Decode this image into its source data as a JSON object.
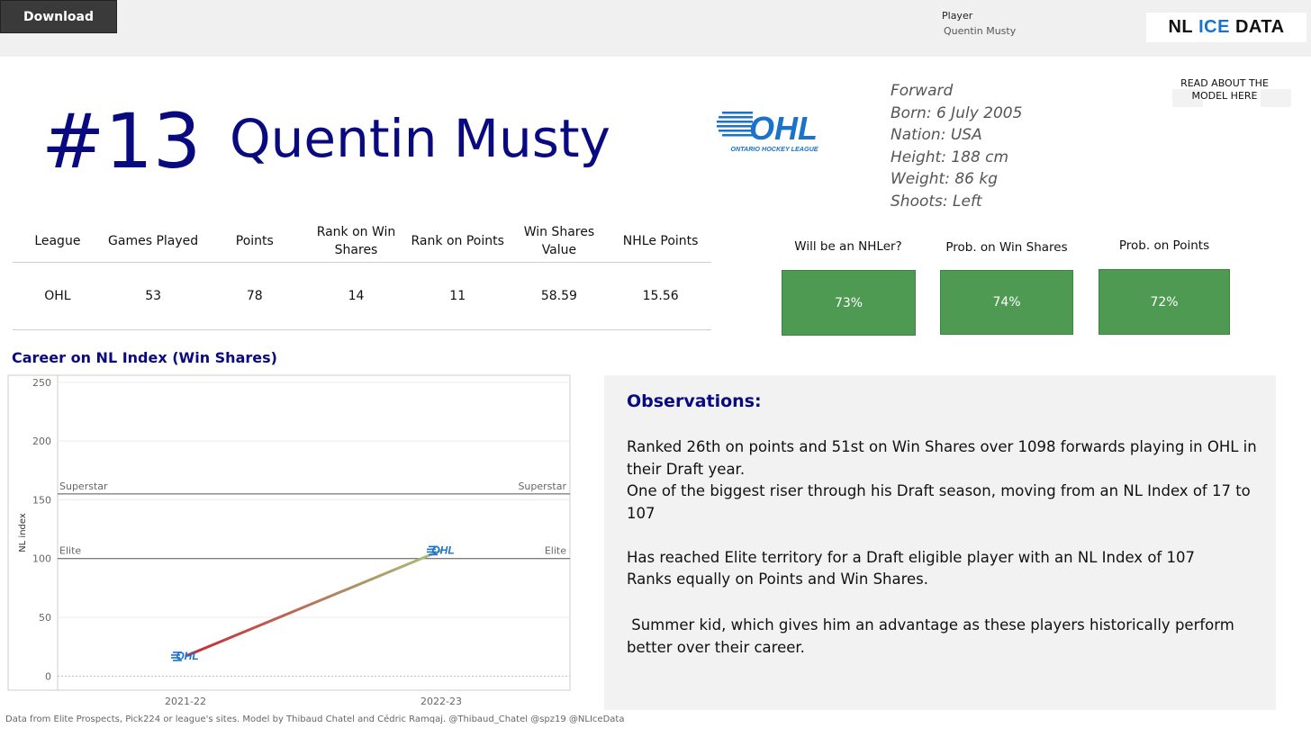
{
  "toolbar": {
    "download_label": "Download"
  },
  "filter": {
    "label": "Player",
    "value": "Quentin Musty"
  },
  "brand": {
    "part1": "NL",
    "part2": "ICE",
    "part3": "DATA"
  },
  "about_link": {
    "label": "READ ABOUT THE MODEL HERE"
  },
  "player": {
    "number": "#13",
    "name": "Quentin Musty",
    "bio": [
      "Forward",
      "Born: 6 July 2005",
      "Nation: USA",
      "Height: 188 cm",
      "Weight: 86 kg",
      "Shoots: Left"
    ]
  },
  "league_logo": {
    "text": "OHL",
    "subtext": "ONTARIO HOCKEY LEAGUE",
    "icon": "ohl-logo-icon",
    "color": "#1a73c9"
  },
  "stats_table": {
    "headers": [
      "League",
      "Games Played",
      "Points",
      "Rank on Win Shares",
      "Rank on Points",
      "Win Shares Value",
      "NHLe Points"
    ],
    "row": [
      "OHL",
      "53",
      "78",
      "14",
      "11",
      "58.59",
      "15.56"
    ]
  },
  "probabilities": [
    {
      "label": "Will be an NHLer?",
      "value": "73%"
    },
    {
      "label": "Prob. on Win Shares",
      "value": "74%"
    },
    {
      "label": "Prob. on Points",
      "value": "72%"
    }
  ],
  "colors": {
    "title_blue": "#0a0a80",
    "prob_green": "#4f9a53",
    "line_start": "#c8283a",
    "line_end": "#a6c57a"
  },
  "chart_data": {
    "type": "line",
    "title": "Career on NL Index (Win Shares)",
    "ylabel": "NL index",
    "xlabel": "",
    "categories": [
      "2021-22",
      "2022-23"
    ],
    "series": [
      {
        "values": [
          17,
          107
        ]
      }
    ],
    "yticks": [
      0,
      50,
      100,
      150,
      200,
      250
    ],
    "ylim": [
      -12,
      256
    ],
    "reference_lines": [
      {
        "label": "Superstar",
        "value": 155
      },
      {
        "label": "Elite",
        "value": 100
      }
    ],
    "point_markers": "OHL logo",
    "grid": true
  },
  "observations": {
    "title": "Observations:",
    "paragraphs": [
      "Ranked 26th on points and 51st on Win Shares over 1098 forwards playing in OHL in their Draft year.",
      "One of the biggest riser through his Draft season, moving from an NL Index of 17 to 107",
      "Has reached Elite territory for a Draft eligible player with an NL Index of 107",
      "Ranks equally on Points and Win Shares.",
      " Summer kid, which gives him an advantage as these players historically perform better over their career."
    ]
  },
  "footer": {
    "text": "Data from Elite Prospects, Pick224 or league's sites. Model by Thibaud Chatel and Cédric Ramqaj. @Thibaud_Chatel @spz19 @NLIceData"
  }
}
